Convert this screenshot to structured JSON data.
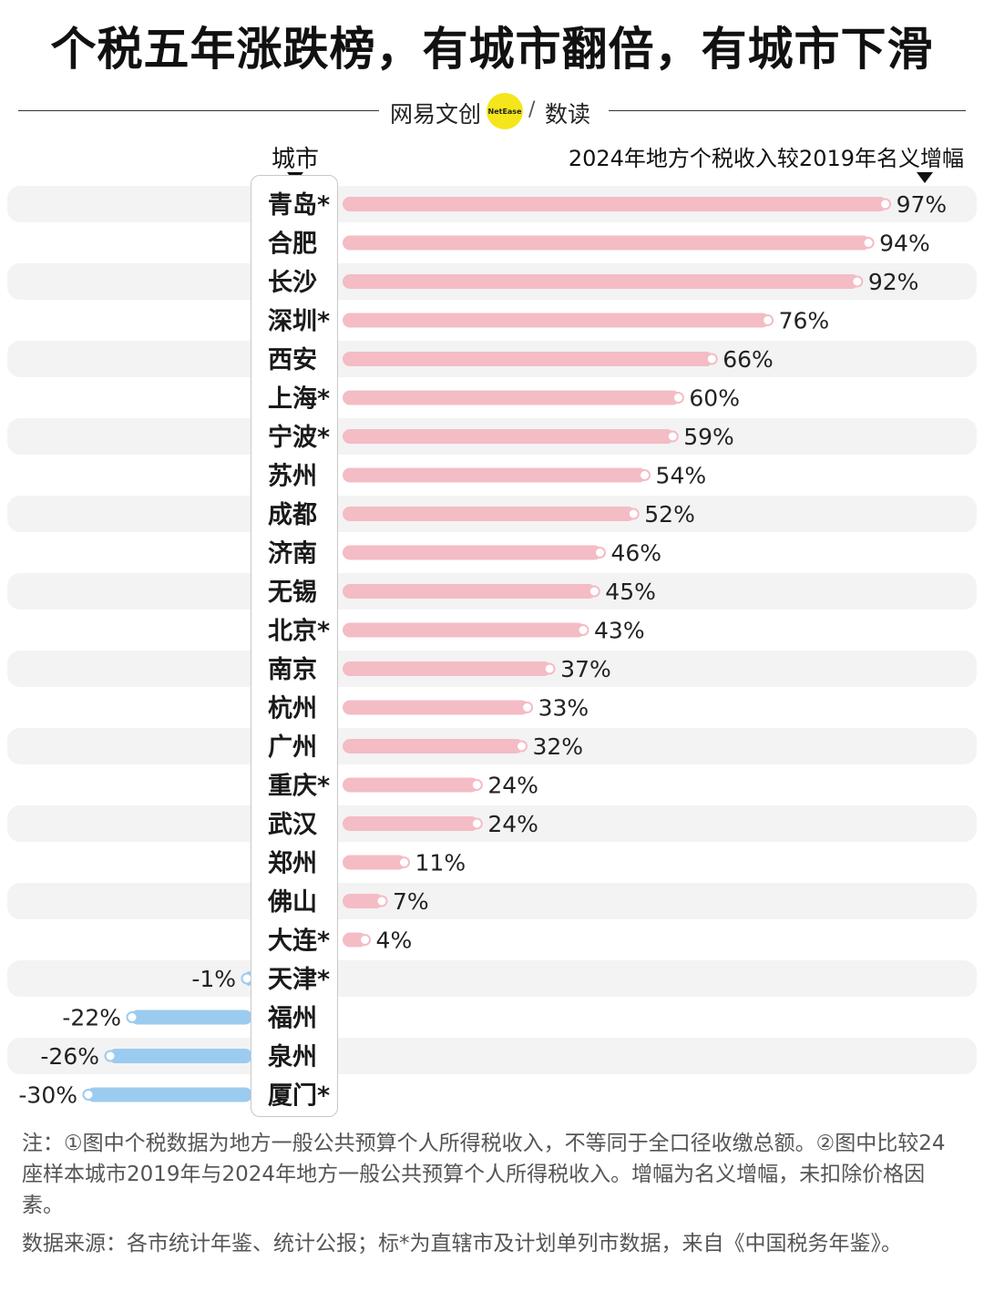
{
  "title": "个税五年涨跌榜，有城市翻倍，有城市下滑",
  "brand": {
    "name": "网易文创",
    "logo_text": "NetEase",
    "sub": "数读"
  },
  "column_headers": {
    "city": "城市",
    "metric": "2024年地方个税收入较2019年名义增幅"
  },
  "colors": {
    "positive": "#f4bcc5",
    "negative": "#9ccbf0",
    "row_band": "#f3f3f3"
  },
  "chart_data": {
    "type": "bar",
    "orientation": "horizontal",
    "categories": [
      "青岛*",
      "合肥",
      "长沙",
      "深圳*",
      "西安",
      "上海*",
      "宁波*",
      "苏州",
      "成都",
      "济南",
      "无锡",
      "北京*",
      "南京",
      "杭州",
      "广州",
      "重庆*",
      "武汉",
      "郑州",
      "佛山",
      "大连*",
      "天津*",
      "福州",
      "泉州",
      "厦门*"
    ],
    "values": [
      97,
      94,
      92,
      76,
      66,
      60,
      59,
      54,
      52,
      46,
      45,
      43,
      37,
      33,
      32,
      24,
      24,
      11,
      7,
      4,
      -1,
      -22,
      -26,
      -30
    ],
    "labels": [
      "97%",
      "94%",
      "92%",
      "76%",
      "66%",
      "60%",
      "59%",
      "54%",
      "52%",
      "46%",
      "45%",
      "43%",
      "37%",
      "33%",
      "32%",
      "24%",
      "24%",
      "11%",
      "7%",
      "4%",
      "-1%",
      "-22%",
      "-26%",
      "-30%"
    ],
    "unit": "%",
    "xlabel": "2024年地方个税收入较2019年名义增幅",
    "ylabel": "城市"
  },
  "notes": [
    "注：①图中个税数据为地方一般公共预算个人所得税收入，不等同于全口径收缴总额。②图中比较24座样本城市2019年与2024年地方一般公共预算个人所得税收入。增幅为名义增幅，未扣除价格因素。",
    "数据来源：各市统计年鉴、统计公报；标*为直辖市及计划单列市数据，来自《中国税务年鉴》。"
  ]
}
